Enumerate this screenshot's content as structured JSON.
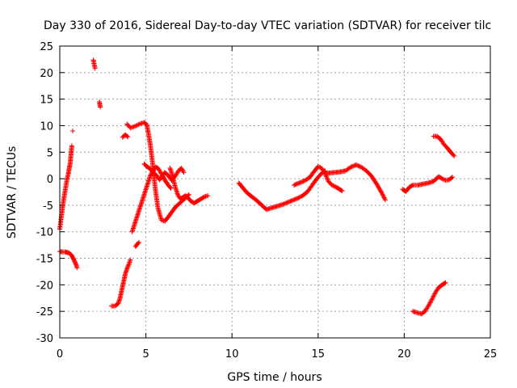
{
  "chart_data": {
    "type": "scatter",
    "title": "Day 330 of 2016, Sidereal Day-to-day VTEC variation (SDTVAR) for receiver tilc",
    "xlabel": "GPS time / hours",
    "ylabel": "SDTVAR / TECUs",
    "xlim": [
      0,
      25
    ],
    "ylim": [
      -30,
      25
    ],
    "xticks": [
      0,
      5,
      10,
      15,
      20,
      25
    ],
    "yticks": [
      -30,
      -25,
      -20,
      -15,
      -10,
      -5,
      0,
      5,
      10,
      15,
      20,
      25
    ],
    "grid": true,
    "marker": "plus",
    "color": "#ff0000",
    "segments": [
      {
        "x": [
          0.0,
          0.1,
          0.2,
          0.3,
          0.4,
          0.5,
          0.55,
          0.6,
          0.65,
          0.7
        ],
        "y": [
          -9.5,
          -7.0,
          -4.5,
          -2.5,
          -0.5,
          1.0,
          2.0,
          2.8,
          4.5,
          6.2
        ]
      },
      {
        "x": [
          0.75
        ],
        "y": [
          9.0
        ]
      },
      {
        "x": [
          0.0,
          0.15,
          0.3,
          0.45,
          0.55,
          0.65,
          0.75,
          0.85,
          0.95,
          1.0
        ],
        "y": [
          -13.7,
          -13.8,
          -13.8,
          -13.9,
          -14.0,
          -14.3,
          -14.8,
          -15.5,
          -16.2,
          -16.8
        ]
      },
      {
        "x": [
          1.95,
          2.0,
          2.05
        ],
        "y": [
          22.4,
          21.5,
          20.8
        ]
      },
      {
        "x": [
          2.3,
          2.35
        ],
        "y": [
          14.5,
          13.5
        ]
      },
      {
        "x": [
          3.0,
          3.2,
          3.4,
          3.5,
          3.6,
          3.7,
          3.8,
          3.9,
          4.0,
          4.1
        ],
        "y": [
          -24.0,
          -24.0,
          -23.5,
          -22.5,
          -21.0,
          -19.5,
          -18.0,
          -17.0,
          -16.2,
          -15.3
        ]
      },
      {
        "x": [
          3.65,
          3.8,
          3.95
        ],
        "y": [
          7.8,
          8.3,
          7.9
        ]
      },
      {
        "x": [
          3.9,
          4.1,
          4.3,
          4.5,
          4.7,
          4.9,
          5.05,
          5.15,
          5.25,
          5.35,
          5.45,
          5.55,
          5.7,
          5.9,
          6.1,
          6.3,
          6.5,
          6.7,
          6.9,
          7.1,
          7.3,
          7.5
        ],
        "y": [
          10.3,
          9.6,
          9.8,
          10.1,
          10.4,
          10.6,
          10.2,
          8.5,
          6.5,
          4.0,
          1.0,
          -2.0,
          -5.5,
          -7.8,
          -8.0,
          -7.2,
          -6.3,
          -5.4,
          -4.8,
          -4.2,
          -3.6,
          -3.0
        ]
      },
      {
        "x": [
          4.4,
          4.5,
          4.6
        ],
        "y": [
          -12.8,
          -12.3,
          -12.0
        ]
      },
      {
        "x": [
          4.2,
          4.35,
          4.5,
          4.65,
          4.8,
          4.95,
          5.1,
          5.25,
          5.4,
          5.55,
          5.7,
          5.85,
          6.0,
          6.15,
          6.3,
          6.45
        ],
        "y": [
          -10.0,
          -8.5,
          -7.0,
          -5.5,
          -4.0,
          -2.5,
          -1.0,
          0.5,
          1.5,
          2.2,
          2.0,
          1.2,
          0.4,
          -0.5,
          -1.2,
          -1.8
        ]
      },
      {
        "x": [
          4.9,
          5.05,
          5.2,
          5.35,
          5.5,
          5.65,
          5.8,
          5.95,
          6.1,
          6.3,
          6.5,
          6.7,
          6.9,
          7.05,
          7.2
        ],
        "y": [
          2.8,
          2.3,
          2.0,
          1.5,
          1.0,
          0.5,
          -0.2,
          0.5,
          1.2,
          0.6,
          -0.3,
          0.5,
          1.5,
          2.0,
          1.2
        ]
      },
      {
        "x": [
          6.4,
          6.55,
          6.7,
          6.85,
          7.0,
          7.15,
          7.3,
          7.45,
          7.6,
          7.8,
          8.0,
          8.2,
          8.4,
          8.6
        ],
        "y": [
          2.0,
          0.5,
          -1.5,
          -3.0,
          -3.8,
          -3.5,
          -3.2,
          -3.6,
          -4.2,
          -4.6,
          -4.2,
          -3.8,
          -3.4,
          -3.2
        ]
      },
      {
        "x": [
          10.4,
          10.6,
          10.8,
          11.0,
          11.2,
          11.4,
          11.6,
          11.8,
          12.0
        ],
        "y": [
          -0.8,
          -1.6,
          -2.4,
          -3.0,
          -3.5,
          -4.0,
          -4.6,
          -5.2,
          -5.8
        ]
      },
      {
        "x": [
          12.0,
          12.3,
          12.6,
          12.9,
          13.2,
          13.5,
          13.8,
          14.1,
          14.4,
          14.7,
          15.0,
          15.2,
          15.4
        ],
        "y": [
          -5.8,
          -5.5,
          -5.2,
          -4.9,
          -4.5,
          -4.1,
          -3.7,
          -3.2,
          -2.4,
          -1.0,
          0.3,
          1.0,
          1.5
        ]
      },
      {
        "x": [
          13.6,
          13.9,
          14.2,
          14.5,
          14.8,
          15.0,
          15.2,
          15.4,
          15.6,
          15.8,
          16.0,
          16.2,
          16.4
        ],
        "y": [
          -1.2,
          -0.8,
          -0.4,
          0.2,
          1.5,
          2.3,
          2.0,
          1.0,
          -0.5,
          -1.2,
          -1.5,
          -1.9,
          -2.3
        ]
      },
      {
        "x": [
          15.4,
          15.7,
          16.0,
          16.3,
          16.6,
          16.9,
          17.2,
          17.5,
          17.8,
          18.1,
          18.4,
          18.7,
          18.9
        ],
        "y": [
          1.0,
          1.1,
          1.2,
          1.3,
          1.5,
          2.2,
          2.6,
          2.2,
          1.5,
          0.5,
          -1.0,
          -2.7,
          -4.0
        ]
      },
      {
        "x": [
          19.9,
          20.1,
          20.3,
          20.5,
          20.8,
          21.1,
          21.4,
          21.7,
          22.0,
          22.2,
          22.4,
          22.6,
          22.8
        ],
        "y": [
          -2.0,
          -2.4,
          -1.6,
          -1.2,
          -1.2,
          -1.0,
          -0.8,
          -0.5,
          0.4,
          0.0,
          -0.3,
          -0.2,
          0.3
        ]
      },
      {
        "x": [
          21.7,
          21.9,
          22.1,
          22.3,
          22.5,
          22.7,
          22.9
        ],
        "y": [
          8.0,
          8.0,
          7.5,
          6.5,
          5.8,
          5.0,
          4.3
        ]
      },
      {
        "x": [
          20.5,
          20.8,
          21.0,
          21.2,
          21.4,
          21.6,
          21.8,
          22.0,
          22.2,
          22.4
        ],
        "y": [
          -25.0,
          -25.3,
          -25.5,
          -25.0,
          -24.0,
          -22.8,
          -21.5,
          -20.5,
          -20.0,
          -19.6
        ]
      }
    ]
  }
}
